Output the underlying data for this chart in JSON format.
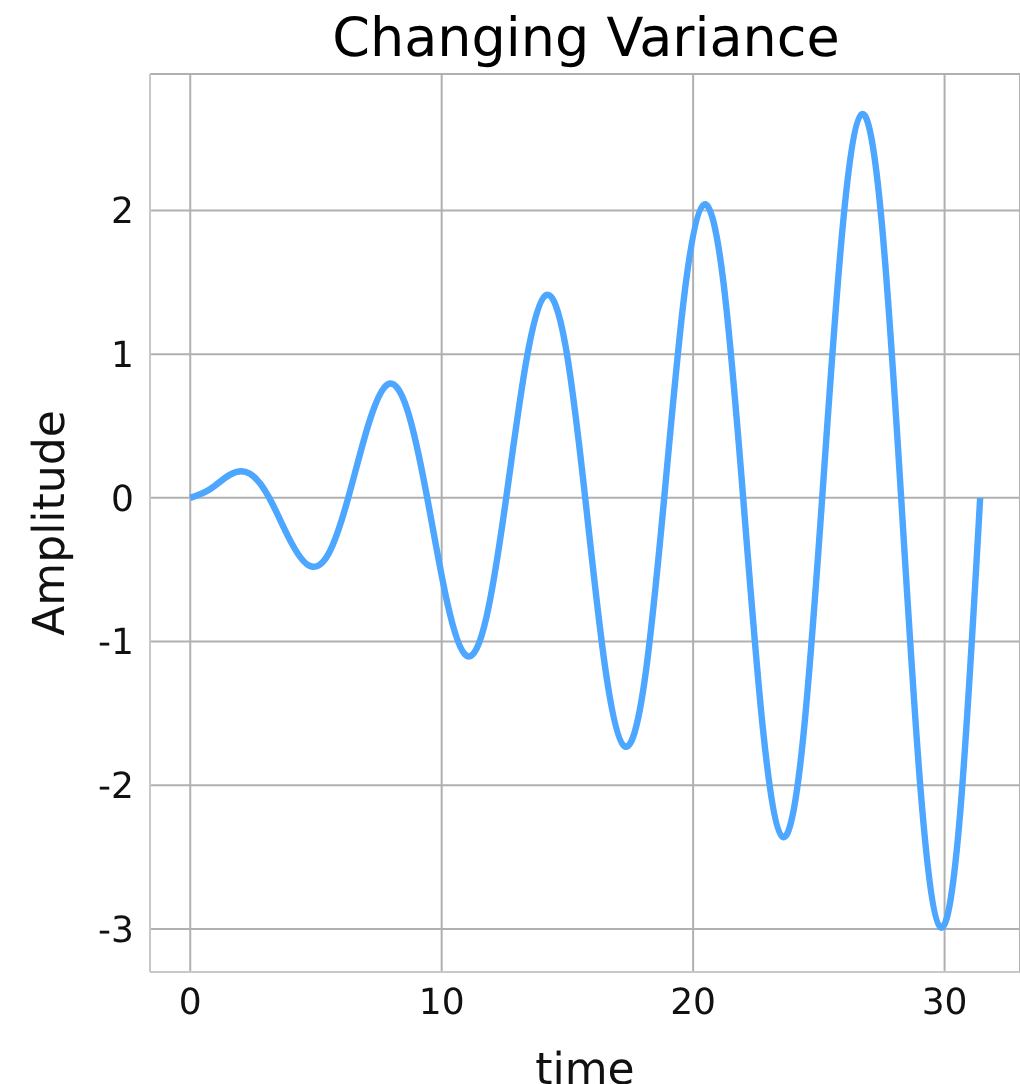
{
  "chart_data": {
    "type": "line",
    "title": "Changing Variance",
    "xlabel": "time",
    "ylabel": "Amplitude",
    "series": [
      {
        "color": "#4da6ff",
        "x": [
          0,
          0.785,
          1.571,
          2.356,
          3.142,
          3.927,
          4.712,
          5.498,
          6.283,
          7.069,
          7.854,
          8.639,
          9.425,
          10.21,
          10.996,
          11.781,
          12.566,
          13.352,
          14.137,
          14.923,
          15.708,
          16.493,
          17.279,
          18.064,
          18.85,
          19.635,
          20.42,
          21.206,
          21.991,
          22.777,
          23.562,
          24.347,
          25.133,
          25.918,
          26.704,
          27.489,
          28.274,
          29.06,
          29.845,
          30.631,
          31.416
        ],
        "values": [
          0,
          0.06,
          0.16,
          0.17,
          0,
          -0.28,
          -0.47,
          -0.39,
          0,
          0.5,
          0.79,
          0.61,
          0,
          -0.72,
          -1.1,
          -0.83,
          0,
          0.94,
          1.41,
          1.06,
          0,
          -1.17,
          -1.73,
          -1.28,
          0,
          1.39,
          2.04,
          1.5,
          0,
          -1.61,
          -2.36,
          -1.72,
          0,
          1.83,
          2.67,
          1.94,
          0,
          -2.06,
          -2.99,
          -2.17,
          0
        ]
      }
    ],
    "xlim": [
      -1.6,
      33
    ],
    "xticks": [
      0,
      10,
      20,
      30
    ],
    "ylim": [
      -3.3,
      2.95
    ],
    "yticks": [
      -3,
      -2,
      -1,
      0,
      1,
      2
    ],
    "grid": true,
    "marker": "none",
    "line_style": "solid"
  }
}
